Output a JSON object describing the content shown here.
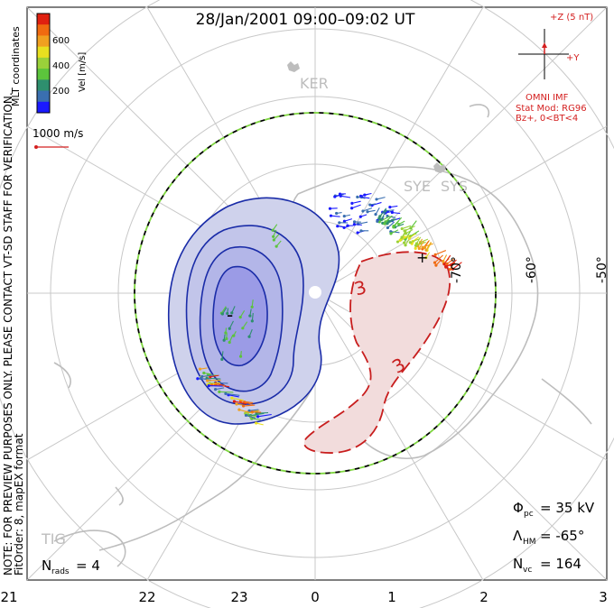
{
  "title": "28/Jan/2001 09:00–09:02 UT",
  "side_note_1": "NOTE: FOR PREVIEW PURPOSES ONLY. PLEASE CONTACT VT-SD STAFF FOR VERIFICATION.",
  "side_note_2": "FitOrder: 8, mapEX format",
  "coords_label": "MLT coordinates",
  "colorbar": {
    "label": "Vel [m/s]",
    "ticks": [
      "600",
      "400",
      "200"
    ],
    "colors": [
      "#1a1aff",
      "#3a6fb0",
      "#2e8f6e",
      "#5cc43c",
      "#9ad13a",
      "#e8e020",
      "#f0a020",
      "#f06a10",
      "#e02010"
    ]
  },
  "ref_vector": {
    "label": "1000 m/s",
    "color": "#d42020"
  },
  "imf": {
    "z_label": "+Z (5 nT)",
    "y_label": "+Y",
    "source": "OMNI IMF",
    "model_line1": "Stat Mod: RG96",
    "model_line2": "Bz+, 0<BT<4",
    "color": "#d42020"
  },
  "stations": [
    "KER",
    "SYE",
    "SYS",
    "TIG"
  ],
  "lat_labels": [
    "-50°",
    "-60°",
    "-70°"
  ],
  "contour_labels": {
    "neg": "-",
    "pos": "3",
    "pos2": "3",
    "pos_marker": "+"
  },
  "mlt_labels": [
    "21",
    "22",
    "23",
    "0",
    "1",
    "2",
    "3"
  ],
  "stats": {
    "phi_pc_sym": "Φ",
    "phi_pc_sub": "pc",
    "phi_pc_val": "= 35 kV",
    "lambda_hm_sym": "Λ",
    "lambda_hm_sub": "HM",
    "lambda_hm_val": "= -65°",
    "n_vc_sym": "N",
    "n_vc_sub": "vc",
    "n_vc_val": "= 164",
    "n_rads_sym": "N",
    "n_rads_sub": "rads",
    "n_rads_val": "= 4"
  },
  "colors": {
    "neg_fill": "#cfd2ec",
    "neg_fill_inner": "#9b9be6",
    "neg_line": "#1a2ca8",
    "pos_fill": "#f2dcdc",
    "pos_line": "#c81e1e",
    "grid": "#c8c8c8",
    "coast": "#bdbdbd",
    "boundary_dash_a": "#000000",
    "boundary_dash_b": "#7fd640"
  }
}
